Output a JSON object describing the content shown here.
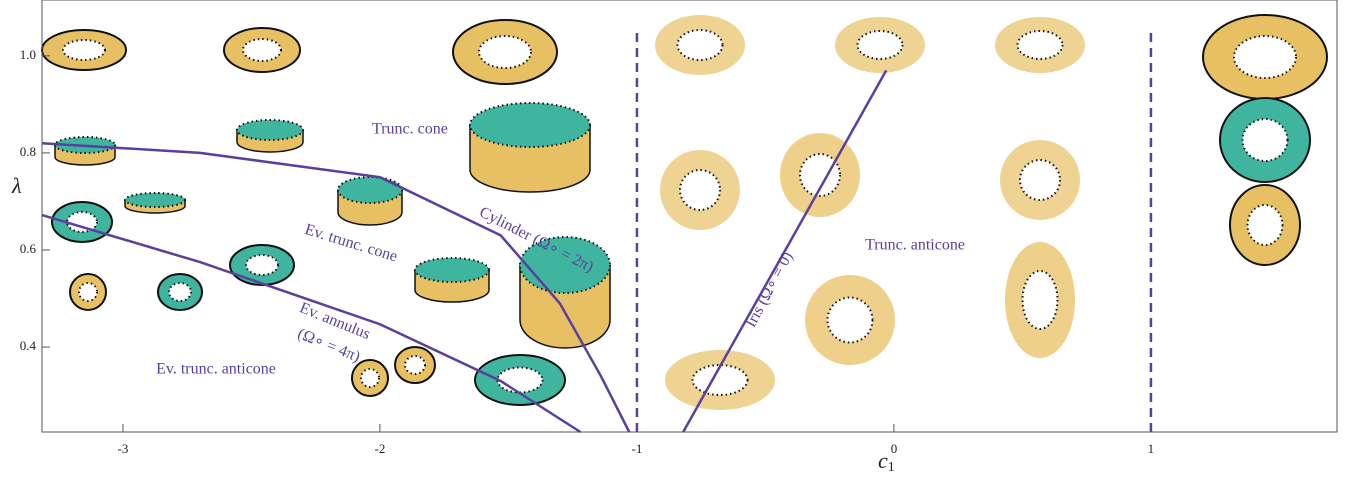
{
  "chart_data": {
    "type": "line",
    "x_label": "c",
    "x_label_sub": "1",
    "y_label": "λ",
    "xlim": [
      -3.315,
      1.724
    ],
    "ylim": [
      0.225,
      1.115
    ],
    "xticks": [
      -3,
      -2,
      -1,
      0,
      1
    ],
    "yticks": [
      0.4,
      0.6,
      0.8,
      {
        "value": 1,
        "label": "1.0"
      }
    ],
    "vlines": [
      -1,
      1
    ],
    "vline_color": "#5b3f9e",
    "series": [
      {
        "color": "#5b3f9e",
        "x": [
          -3.315,
          -2.7,
          -2.0,
          -1.53,
          -1.3,
          -1.14,
          -1.03
        ],
        "values": [
          0.82,
          0.8,
          0.75,
          0.63,
          0.49,
          0.34,
          0.225
        ]
      },
      {
        "color": "#5b3f9e",
        "x": [
          -3.315,
          -2.7,
          -2.0,
          -1.53,
          -1.22
        ],
        "values": [
          0.672,
          0.575,
          0.447,
          0.33,
          0.225
        ]
      },
      {
        "color": "#5b3f9e",
        "x": [
          -0.82,
          -0.03
        ],
        "values": [
          0.225,
          0.97
        ]
      }
    ],
    "annotations": [
      "Trunc. cone",
      "Cylinder (Ω∘ = 2π)",
      "Ev. trunc. cone",
      "Ev. annulus",
      "(Ω∘ = 4π)",
      "Ev. trunc. anticone",
      "Iris (Ω∘ = 0)",
      "Trunc. anticone"
    ]
  }
}
